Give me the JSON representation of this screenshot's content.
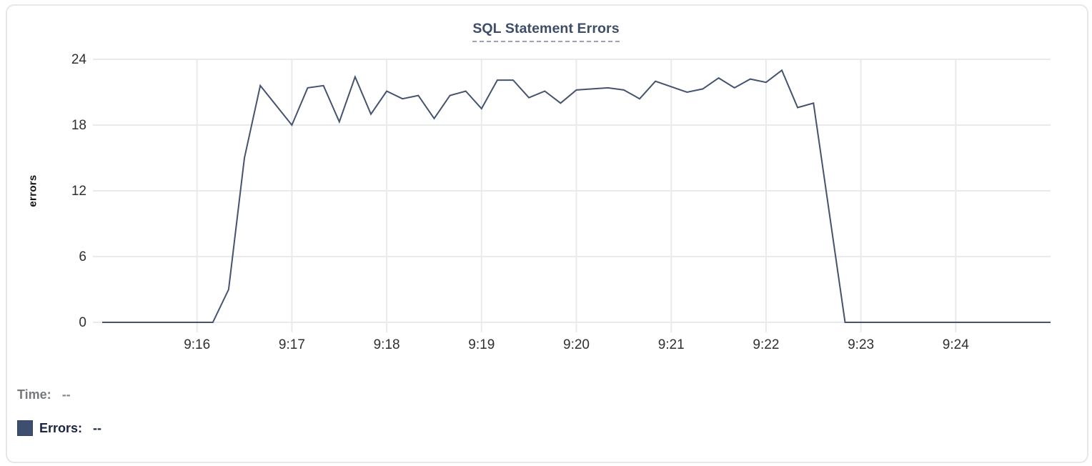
{
  "tooltip": {
    "time_label": "Time:",
    "time_value": "--",
    "errors_label": "Errors:",
    "errors_value": "--"
  },
  "colors": {
    "line": "#44536f",
    "swatch": "#3e4e6e",
    "title_text": "#3e4d68",
    "underline": "#9aa3b6",
    "navy_text": "#1b2442",
    "gray_text": "#75787d",
    "tick_text": "#2e2f31",
    "grid": "#e9eaec",
    "card_border": "#e6e7e9"
  },
  "chart_data": {
    "type": "line",
    "title": "SQL Statement Errors",
    "xlabel": "",
    "ylabel": "errors",
    "ylim": [
      0,
      24
    ],
    "y_ticks": [
      0,
      6,
      12,
      18,
      24
    ],
    "x_ticks": [
      "9:16",
      "9:17",
      "9:18",
      "9:19",
      "9:20",
      "9:21",
      "9:22",
      "9:23",
      "9:24"
    ],
    "x_range": [
      "9:15:00",
      "9:25:00"
    ],
    "grid": true,
    "legend_position": "bottom-left",
    "series": [
      {
        "name": "Errors",
        "color": "#44536f",
        "points": [
          [
            "9:15:00",
            0
          ],
          [
            "9:15:10",
            0
          ],
          [
            "9:15:20",
            0
          ],
          [
            "9:15:30",
            0
          ],
          [
            "9:15:40",
            0
          ],
          [
            "9:15:50",
            0
          ],
          [
            "9:16:00",
            0
          ],
          [
            "9:16:10",
            0
          ],
          [
            "9:16:20",
            3
          ],
          [
            "9:16:30",
            15
          ],
          [
            "9:16:40",
            21.6
          ],
          [
            "9:16:50",
            19.8
          ],
          [
            "9:17:00",
            18
          ],
          [
            "9:17:10",
            21.4
          ],
          [
            "9:17:20",
            21.6
          ],
          [
            "9:17:30",
            18.3
          ],
          [
            "9:17:40",
            22.4
          ],
          [
            "9:17:50",
            19
          ],
          [
            "9:18:00",
            21.1
          ],
          [
            "9:18:10",
            20.4
          ],
          [
            "9:18:20",
            20.7
          ],
          [
            "9:18:30",
            18.6
          ],
          [
            "9:18:40",
            20.7
          ],
          [
            "9:18:50",
            21.1
          ],
          [
            "9:19:00",
            19.5
          ],
          [
            "9:19:10",
            22.1
          ],
          [
            "9:19:20",
            22.1
          ],
          [
            "9:19:30",
            20.5
          ],
          [
            "9:19:40",
            21.1
          ],
          [
            "9:19:50",
            20
          ],
          [
            "9:20:00",
            21.2
          ],
          [
            "9:20:10",
            21.3
          ],
          [
            "9:20:20",
            21.4
          ],
          [
            "9:20:30",
            21.2
          ],
          [
            "9:20:40",
            20.4
          ],
          [
            "9:20:50",
            22
          ],
          [
            "9:21:00",
            21.5
          ],
          [
            "9:21:10",
            21
          ],
          [
            "9:21:20",
            21.3
          ],
          [
            "9:21:30",
            22.3
          ],
          [
            "9:21:40",
            21.4
          ],
          [
            "9:21:50",
            22.2
          ],
          [
            "9:22:00",
            21.9
          ],
          [
            "9:22:10",
            23
          ],
          [
            "9:22:20",
            19.6
          ],
          [
            "9:22:30",
            20
          ],
          [
            "9:22:40",
            10
          ],
          [
            "9:22:50",
            0
          ],
          [
            "9:23:00",
            0
          ],
          [
            "9:23:10",
            0
          ],
          [
            "9:23:20",
            0
          ],
          [
            "9:23:30",
            0
          ],
          [
            "9:23:40",
            0
          ],
          [
            "9:23:50",
            0
          ],
          [
            "9:24:00",
            0
          ],
          [
            "9:24:10",
            0
          ],
          [
            "9:24:20",
            0
          ],
          [
            "9:24:30",
            0
          ],
          [
            "9:24:40",
            0
          ],
          [
            "9:24:50",
            0
          ],
          [
            "9:25:00",
            0
          ]
        ]
      }
    ]
  }
}
